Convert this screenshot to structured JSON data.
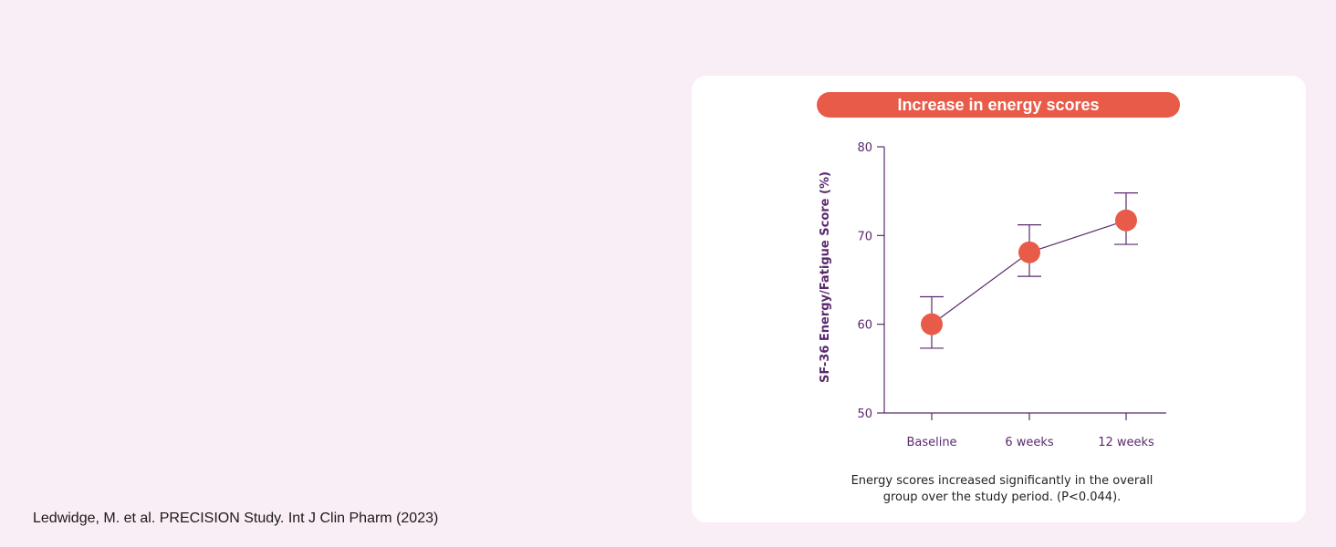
{
  "citation": "Ledwidge, M. et al. PRECISION Study. Int J Clin Pharm (2023)",
  "card": {
    "caption_line1": "Energy scores increased significantly in the overall",
    "caption_line2": "group over the study period. (P<0.044)."
  },
  "colors": {
    "background": "#faeef6",
    "card": "#ffffff",
    "accent": "#e85b48",
    "axis": "#5a2a6e"
  },
  "chart_data": {
    "type": "line",
    "title": "Increase in energy scores",
    "xlabel": "",
    "ylabel": "SF-36 Energy/Fatigue Score (%)",
    "categories": [
      "Baseline",
      "6 weeks",
      "12 weeks"
    ],
    "values": [
      60,
      68.1,
      71.7
    ],
    "error_low": [
      57.3,
      65.4,
      69.0
    ],
    "error_high": [
      63.1,
      71.2,
      74.8
    ],
    "ylim": [
      50,
      80
    ],
    "yticks": [
      50,
      60,
      70,
      80
    ],
    "grid": false
  }
}
